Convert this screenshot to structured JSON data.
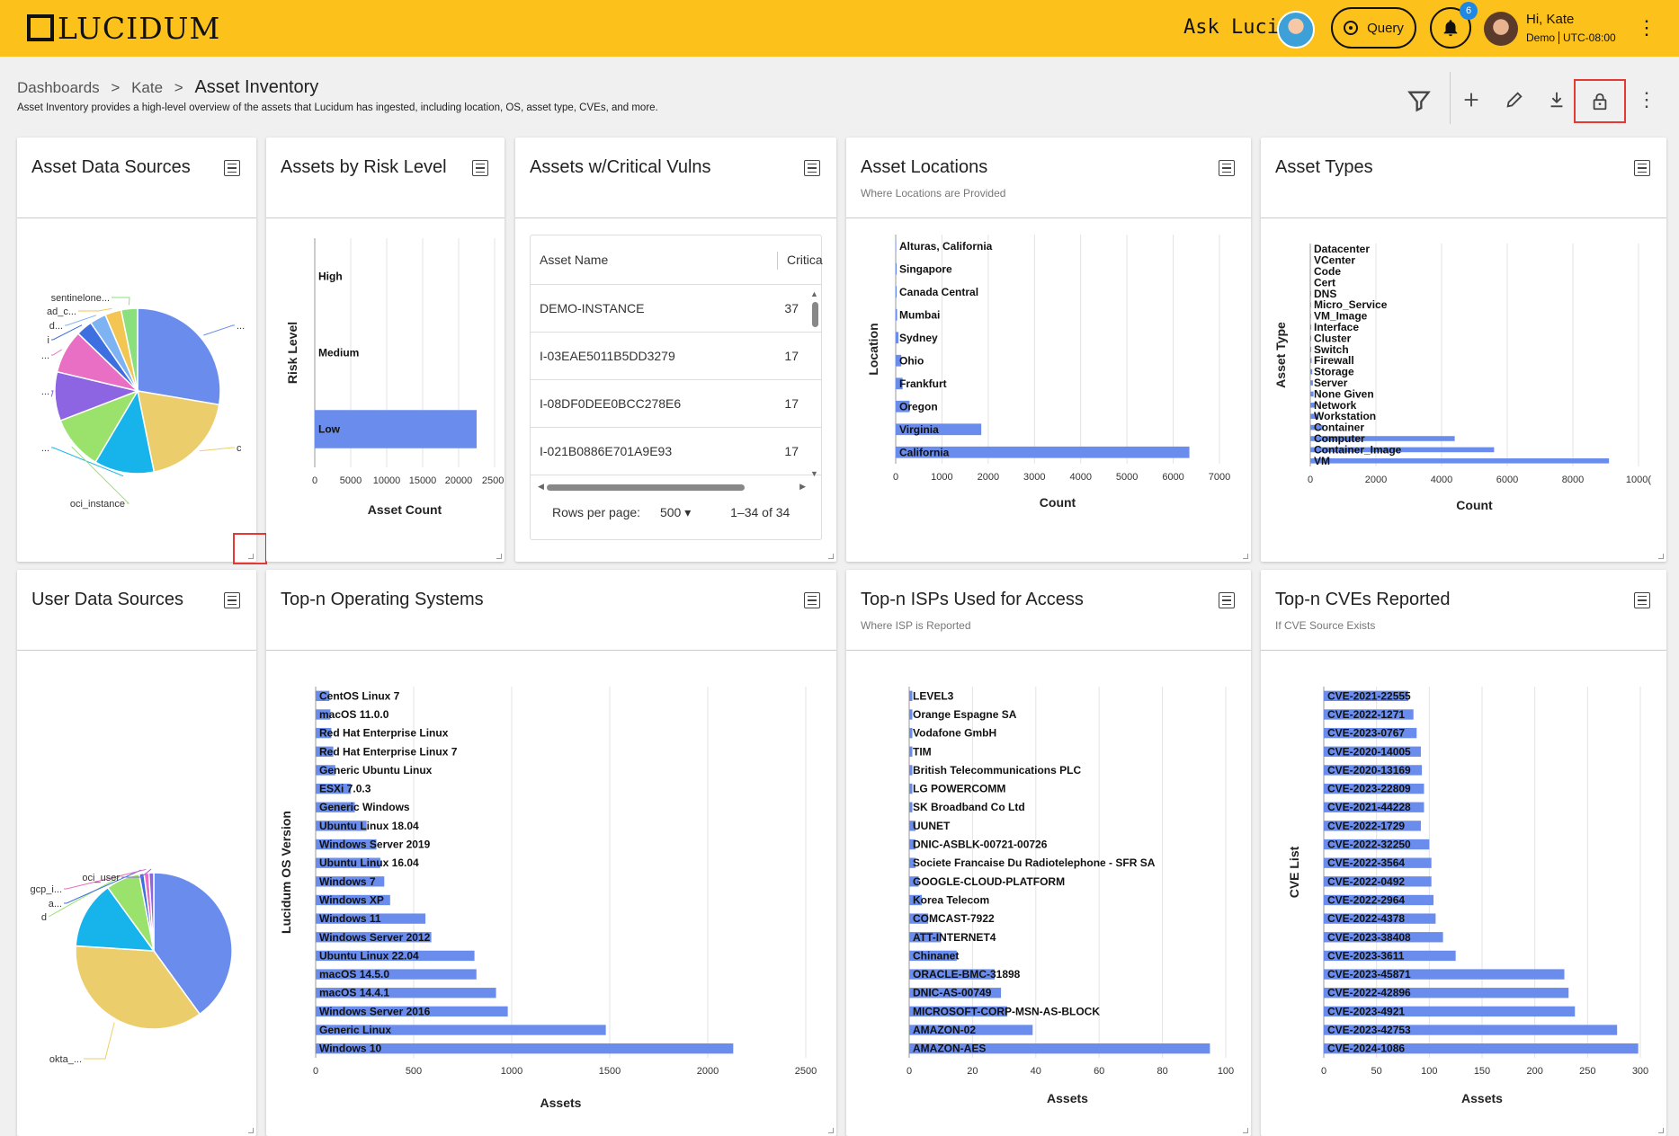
{
  "header": {
    "logo_text": "LUCIDUM",
    "ask_label": "Ask Luci:",
    "query_label": "Query",
    "notification_count": "6",
    "greeting": "Hi, Kate",
    "org": "Demo",
    "timezone": "UTC-08:00"
  },
  "breadcrumb": {
    "items": [
      "Dashboards",
      "Kate"
    ],
    "current": "Asset Inventory",
    "separator": ">"
  },
  "page_description": "Asset Inventory provides a high-level overview of the assets that Lucidum has ingested, including location, OS, asset type, CVEs, and more.",
  "toolbar": [
    "filter-icon",
    "add-icon",
    "edit-icon",
    "download-icon",
    "lock-icon",
    "more-icon"
  ],
  "colors": {
    "accent": "#fcc21b",
    "bar": "#6a8ded",
    "highlight": "#e53935"
  },
  "panels": {
    "asset_data_sources": {
      "title": "Asset Data Sources",
      "labels": [
        "sentinelone...",
        "ad_c...",
        "d...",
        "i",
        "...",
        "c",
        "...",
        "oci_instance"
      ]
    },
    "assets_by_risk": {
      "title": "Assets by Risk Level"
    },
    "critical_vulns": {
      "title": "Assets w/Critical Vulns",
      "columns": [
        "Asset Name",
        "Critica"
      ],
      "rows": [
        [
          "DEMO-INSTANCE",
          "37"
        ],
        [
          "I-03EAE5011B5DD3279",
          "17"
        ],
        [
          "I-08DF0DEE0BCC278E6",
          "17"
        ],
        [
          "I-021B0886E701A9E93",
          "17"
        ]
      ],
      "rows_per_page_label": "Rows per page:",
      "rows_per_page": "500",
      "range": "1–34 of 34"
    },
    "asset_locations": {
      "title": "Asset Locations",
      "subtitle": "Where Locations are Provided"
    },
    "asset_types": {
      "title": "Asset Types"
    },
    "user_data_sources": {
      "title": "User Data Sources",
      "labels": [
        "oci_user",
        "gcp_i...",
        "a...",
        "d",
        "okta_..."
      ]
    },
    "top_os": {
      "title": "Top-n Operating Systems"
    },
    "top_isps": {
      "title": "Top-n ISPs Used for Access",
      "subtitle": "Where ISP is Reported"
    },
    "top_cves": {
      "title": "Top-n CVEs Reported",
      "subtitle": "If CVE Source Exists"
    }
  },
  "chart_data": [
    {
      "id": "asset_data_sources",
      "type": "pie",
      "categories": [
        "...",
        "c",
        "...",
        "oci_instance",
        "...",
        "...",
        "i",
        "d...",
        "ad_c...",
        "sentinelone..."
      ],
      "values": [
        26,
        18,
        11,
        10,
        9,
        8,
        3,
        3,
        3,
        3
      ]
    },
    {
      "id": "assets_by_risk",
      "type": "bar",
      "orientation": "horizontal",
      "categories": [
        "High",
        "Medium",
        "Low"
      ],
      "values": [
        0,
        0,
        22500
      ],
      "xlim": [
        0,
        25000
      ],
      "xticks": [
        "0",
        "5000",
        "10000",
        "15000",
        "20000",
        "2500("
      ],
      "xlabel": "Asset Count",
      "ylabel": "Risk Level"
    },
    {
      "id": "asset_locations",
      "type": "bar",
      "orientation": "horizontal",
      "categories": [
        "Alturas, California",
        "Singapore",
        "Canada Central",
        "Mumbai",
        "Sydney",
        "Ohio",
        "Frankfurt",
        "Oregon",
        "Virginia",
        "California"
      ],
      "values": [
        10,
        20,
        20,
        30,
        60,
        120,
        150,
        300,
        1850,
        6350
      ],
      "xlim": [
        0,
        7000
      ],
      "xticks": [
        "0",
        "1000",
        "2000",
        "3000",
        "4000",
        "5000",
        "6000",
        "7000"
      ],
      "xlabel": "Count",
      "ylabel": "Location"
    },
    {
      "id": "asset_types",
      "type": "bar",
      "orientation": "horizontal",
      "categories": [
        "Datacenter",
        "VCenter",
        "Code",
        "Cert",
        "DNS",
        "Micro_Service",
        "VM_Image",
        "Interface",
        "Cluster",
        "Switch",
        "Firewall",
        "Storage",
        "Server",
        "None Given",
        "Network",
        "Workstation",
        "Container",
        "Computer",
        "Container_Image",
        "VM"
      ],
      "values": [
        10,
        10,
        10,
        10,
        20,
        20,
        20,
        30,
        30,
        30,
        40,
        60,
        80,
        100,
        150,
        250,
        400,
        4400,
        5600,
        9100
      ],
      "xlim": [
        0,
        10000
      ],
      "xticks": [
        "0",
        "2000",
        "4000",
        "6000",
        "8000",
        "1000("
      ],
      "xlabel": "Count",
      "ylabel": "Asset Type"
    },
    {
      "id": "user_data_sources",
      "type": "pie",
      "categories": [
        "",
        "okta_...",
        "",
        "d",
        "a...",
        "gcp_i...",
        "oci_user"
      ],
      "values": [
        40,
        36,
        14,
        7,
        1,
        1,
        1
      ]
    },
    {
      "id": "top_os",
      "type": "bar",
      "orientation": "horizontal",
      "categories": [
        "CentOS Linux 7",
        "macOS 11.0.0",
        "Red Hat Enterprise Linux",
        "Red Hat Enterprise Linux 7",
        "Generic Ubuntu Linux",
        "ESXi 7.0.3",
        "Generic Windows",
        "Ubuntu Linux 18.04",
        "Windows Server 2019",
        "Ubuntu Linux 16.04",
        "Windows 7",
        "Windows XP",
        "Windows 11",
        "Windows Server 2012",
        "Ubuntu Linux 22.04",
        "macOS 14.5.0",
        "macOS 14.4.1",
        "Windows Server 2016",
        "Generic Linux",
        "Windows 10"
      ],
      "values": [
        70,
        75,
        80,
        90,
        100,
        180,
        200,
        260,
        310,
        330,
        350,
        380,
        560,
        590,
        810,
        820,
        920,
        980,
        1480,
        2130
      ],
      "xlim": [
        0,
        2500
      ],
      "xticks": [
        "0",
        "500",
        "1000",
        "1500",
        "2000",
        "2500"
      ],
      "xlabel": "Assets",
      "ylabel": "Lucidum OS Version"
    },
    {
      "id": "top_isps",
      "type": "bar",
      "orientation": "horizontal",
      "categories": [
        "LEVEL3",
        "Orange Espagne SA",
        "Vodafone GmbH",
        "TIM",
        "British Telecommunications PLC",
        "LG POWERCOMM",
        "SK Broadband Co Ltd",
        "UUNET",
        "DNIC-ASBLK-00721-00726",
        "Societe Francaise Du Radiotelephone - SFR SA",
        "GOOGLE-CLOUD-PLATFORM",
        "Korea Telecom",
        "COMCAST-7922",
        "ATT-INTERNET4",
        "Chinanet",
        "ORACLE-BMC-31898",
        "DNIC-AS-00749",
        "MICROSOFT-CORP-MSN-AS-BLOCK",
        "AMAZON-02",
        "AMAZON-AES"
      ],
      "values": [
        1,
        1,
        1,
        1,
        1,
        1,
        1,
        2,
        2,
        2,
        3,
        4,
        6,
        10,
        15,
        27,
        29,
        31,
        39,
        95
      ],
      "xlim": [
        0,
        100
      ],
      "xticks": [
        "0",
        "20",
        "40",
        "60",
        "80",
        "100"
      ],
      "xlabel": "Assets",
      "ylabel": ""
    },
    {
      "id": "top_cves",
      "type": "bar",
      "orientation": "horizontal",
      "categories": [
        "CVE-2021-22555",
        "CVE-2022-1271",
        "CVE-2023-0767",
        "CVE-2020-14005",
        "CVE-2020-13169",
        "CVE-2023-22809",
        "CVE-2021-44228",
        "CVE-2022-1729",
        "CVE-2022-32250",
        "CVE-2022-3564",
        "CVE-2022-0492",
        "CVE-2022-2964",
        "CVE-2022-4378",
        "CVE-2023-38408",
        "CVE-2023-3611",
        "CVE-2023-45871",
        "CVE-2022-42896",
        "CVE-2023-4921",
        "CVE-2023-42753",
        "CVE-2024-1086"
      ],
      "values": [
        80,
        85,
        88,
        92,
        93,
        95,
        95,
        92,
        100,
        102,
        102,
        104,
        106,
        113,
        125,
        228,
        232,
        238,
        278,
        298
      ],
      "xlim": [
        0,
        300
      ],
      "xticks": [
        "0",
        "50",
        "100",
        "150",
        "200",
        "250",
        "300"
      ],
      "xlabel": "Assets",
      "ylabel": "CVE List"
    }
  ]
}
